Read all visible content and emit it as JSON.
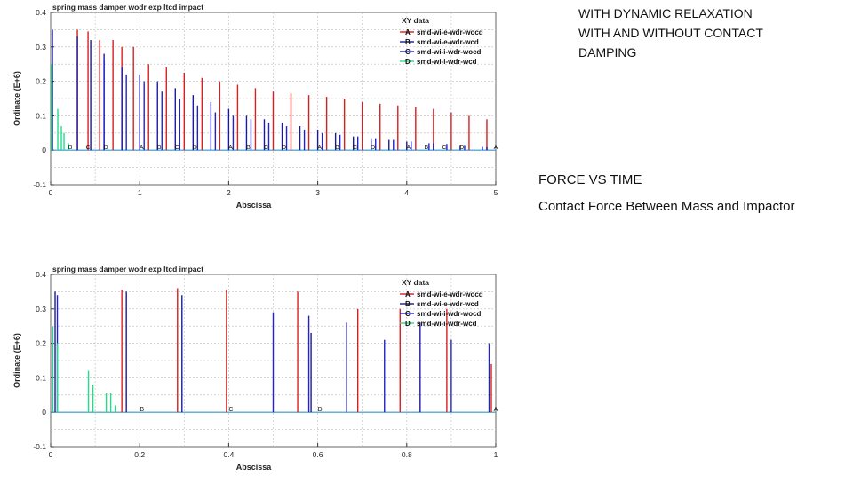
{
  "notes_top": [
    "WITH DYNAMIC RELAXATION",
    "WITH AND WITHOUT CONTACT",
    "DAMPING"
  ],
  "notes_bottom": [
    "FORCE VS TIME",
    "Contact Force Between Mass and Impactor"
  ],
  "chart_data": [
    {
      "type": "line",
      "title": "spring mass damper wodr exp ltcd impact",
      "xlabel": "Abscissa",
      "ylabel": "Ordinate (E+6)",
      "xlim": [
        0,
        5
      ],
      "ylim": [
        -0.1,
        0.4
      ],
      "xticks": [
        0,
        1,
        2,
        3,
        4,
        5
      ],
      "yticks": [
        -0.1,
        0,
        0.1,
        0.2,
        0.3,
        0.4
      ],
      "grid": true,
      "legend_title": "XY data",
      "legend_position": "top-right",
      "series": [
        {
          "key": "A",
          "name": "smd-wi-e-wdr-wocd",
          "color": "#d62020",
          "peaks": [
            [
              0.3,
              0.35
            ],
            [
              0.42,
              0.345
            ],
            [
              0.55,
              0.32
            ],
            [
              0.7,
              0.32
            ],
            [
              0.8,
              0.3
            ],
            [
              0.93,
              0.3
            ],
            [
              1.1,
              0.25
            ],
            [
              1.3,
              0.24
            ],
            [
              1.5,
              0.225
            ],
            [
              1.7,
              0.21
            ],
            [
              1.9,
              0.2
            ],
            [
              2.1,
              0.19
            ],
            [
              2.3,
              0.18
            ],
            [
              2.5,
              0.17
            ],
            [
              2.7,
              0.165
            ],
            [
              2.9,
              0.16
            ],
            [
              3.1,
              0.155
            ],
            [
              3.3,
              0.15
            ],
            [
              3.5,
              0.14
            ],
            [
              3.7,
              0.135
            ],
            [
              3.9,
              0.13
            ],
            [
              4.1,
              0.125
            ],
            [
              4.3,
              0.12
            ],
            [
              4.5,
              0.11
            ],
            [
              4.7,
              0.1
            ],
            [
              4.9,
              0.09
            ]
          ]
        },
        {
          "key": "B",
          "name": "smd-wi-e-wdr-wcd",
          "color": "#1a1aa0",
          "peaks": [
            [
              0.02,
              0.35
            ],
            [
              0.3,
              0.33
            ],
            [
              0.45,
              0.32
            ],
            [
              0.6,
              0.28
            ],
            [
              0.8,
              0.24
            ],
            [
              1.0,
              0.22
            ],
            [
              1.2,
              0.2
            ],
            [
              1.4,
              0.18
            ],
            [
              1.6,
              0.16
            ],
            [
              1.8,
              0.14
            ],
            [
              2.0,
              0.12
            ],
            [
              2.2,
              0.1
            ],
            [
              2.4,
              0.09
            ],
            [
              2.6,
              0.08
            ],
            [
              2.8,
              0.07
            ],
            [
              3.0,
              0.06
            ],
            [
              3.2,
              0.05
            ],
            [
              3.4,
              0.04
            ],
            [
              3.6,
              0.035
            ],
            [
              3.8,
              0.03
            ],
            [
              4.0,
              0.025
            ],
            [
              4.3,
              0.02
            ],
            [
              4.6,
              0.015
            ],
            [
              4.9,
              0.01
            ]
          ]
        },
        {
          "key": "C",
          "name": "smd-wi-i-wdr-wocd",
          "color": "#2222cc",
          "peaks": [
            [
              0.6,
              0.26
            ],
            [
              0.85,
              0.22
            ],
            [
              1.05,
              0.2
            ],
            [
              1.25,
              0.17
            ],
            [
              1.45,
              0.15
            ],
            [
              1.65,
              0.13
            ],
            [
              1.85,
              0.11
            ],
            [
              2.05,
              0.1
            ],
            [
              2.25,
              0.09
            ],
            [
              2.45,
              0.08
            ],
            [
              2.65,
              0.07
            ],
            [
              2.85,
              0.06
            ],
            [
              3.05,
              0.05
            ],
            [
              3.25,
              0.045
            ],
            [
              3.45,
              0.04
            ],
            [
              3.65,
              0.035
            ],
            [
              3.85,
              0.03
            ],
            [
              4.05,
              0.025
            ],
            [
              4.25,
              0.02
            ],
            [
              4.45,
              0.018
            ],
            [
              4.65,
              0.015
            ],
            [
              4.85,
              0.012
            ]
          ]
        },
        {
          "key": "D",
          "name": "smd-wi-i-wdr-wcd",
          "color": "#22dd88",
          "peaks": [
            [
              0.01,
              0.25
            ],
            [
              0.08,
              0.12
            ],
            [
              0.12,
              0.07
            ],
            [
              0.15,
              0.05
            ],
            [
              0.2,
              0.02
            ]
          ]
        }
      ],
      "point_labels": [
        {
          "text": "B",
          "x": 0.22
        },
        {
          "text": "C",
          "x": 0.42
        },
        {
          "text": "D",
          "x": 0.62
        },
        {
          "text": "A",
          "x": 1.02
        },
        {
          "text": "B",
          "x": 1.22
        },
        {
          "text": "C",
          "x": 1.42
        },
        {
          "text": "D",
          "x": 1.62
        },
        {
          "text": "A",
          "x": 2.02
        },
        {
          "text": "B",
          "x": 2.22
        },
        {
          "text": "C",
          "x": 2.42
        },
        {
          "text": "D",
          "x": 2.62
        },
        {
          "text": "A",
          "x": 3.02
        },
        {
          "text": "B",
          "x": 3.22
        },
        {
          "text": "C",
          "x": 3.42
        },
        {
          "text": "D",
          "x": 3.62
        },
        {
          "text": "A",
          "x": 4.02
        },
        {
          "text": "B",
          "x": 4.22
        },
        {
          "text": "C",
          "x": 4.42
        },
        {
          "text": "D",
          "x": 4.62
        },
        {
          "text": "A",
          "x": 5.0
        }
      ]
    },
    {
      "type": "line",
      "title": "spring mass damper wodr exp ltcd impact",
      "xlabel": "Abscissa",
      "ylabel": "Ordinate (E+6)",
      "xlim": [
        0,
        1
      ],
      "ylim": [
        -0.1,
        0.4
      ],
      "xticks": [
        0,
        0.2,
        0.4,
        0.6,
        0.8,
        1
      ],
      "yticks": [
        -0.1,
        0,
        0.1,
        0.2,
        0.3,
        0.4
      ],
      "grid": true,
      "legend_title": "XY data",
      "legend_position": "top-right",
      "series": [
        {
          "key": "A",
          "name": "smd-wi-e-wdr-wocd",
          "color": "#d62020",
          "peaks": [
            [
              0.16,
              0.355
            ],
            [
              0.285,
              0.36
            ],
            [
              0.395,
              0.355
            ],
            [
              0.555,
              0.35
            ],
            [
              0.69,
              0.3
            ],
            [
              0.785,
              0.3
            ],
            [
              0.89,
              0.3
            ],
            [
              0.99,
              0.14
            ]
          ]
        },
        {
          "key": "B",
          "name": "smd-wi-e-wdr-wcd",
          "color": "#1a1aa0",
          "peaks": [
            [
              0.01,
              0.35
            ],
            [
              0.17,
              0.35
            ],
            [
              0.295,
              0.34
            ],
            [
              0.585,
              0.23
            ],
            [
              0.665,
              0.26
            ],
            [
              0.83,
              0.26
            ]
          ]
        },
        {
          "key": "C",
          "name": "smd-wi-i-wdr-wocd",
          "color": "#2222cc",
          "peaks": [
            [
              0.015,
              0.34
            ],
            [
              0.5,
              0.29
            ],
            [
              0.58,
              0.28
            ],
            [
              0.75,
              0.21
            ],
            [
              0.9,
              0.21
            ],
            [
              0.985,
              0.2
            ]
          ]
        },
        {
          "key": "D",
          "name": "smd-wi-i-wdr-wcd",
          "color": "#22dd88",
          "peaks": [
            [
              0.005,
              0.25
            ],
            [
              0.015,
              0.2
            ],
            [
              0.085,
              0.12
            ],
            [
              0.095,
              0.08
            ],
            [
              0.125,
              0.055
            ],
            [
              0.135,
              0.055
            ],
            [
              0.145,
              0.02
            ]
          ]
        }
      ],
      "point_labels": [
        {
          "text": "B",
          "x": 0.205
        },
        {
          "text": "C",
          "x": 0.405
        },
        {
          "text": "D",
          "x": 0.605
        },
        {
          "text": "A",
          "x": 1.0
        }
      ]
    }
  ]
}
